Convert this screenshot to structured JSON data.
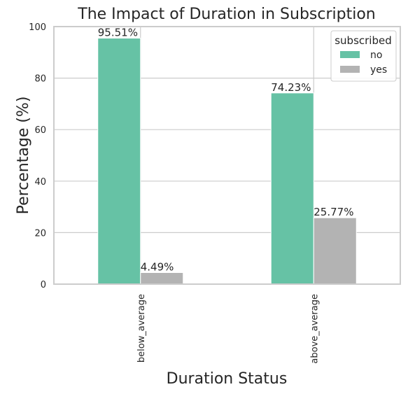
{
  "chart_data": {
    "type": "bar",
    "title": "The Impact of Duration in Subscription",
    "xlabel": "Duration Status",
    "ylabel": "Percentage (%)",
    "categories": [
      "below_average",
      "above_average"
    ],
    "series": [
      {
        "name": "no",
        "values": [
          95.51,
          74.23
        ],
        "labels": [
          "95.51%",
          "74.23%"
        ],
        "color": "#66c2a5"
      },
      {
        "name": "yes",
        "values": [
          4.49,
          25.77
        ],
        "labels": [
          "4.49%",
          "25.77%"
        ],
        "color": "#b3b3b3"
      }
    ],
    "ylim": [
      0,
      100
    ],
    "yticks": [
      0,
      20,
      40,
      60,
      80,
      100
    ],
    "grid": true,
    "legend": {
      "title": "subscribed",
      "placement": "top-right"
    }
  }
}
